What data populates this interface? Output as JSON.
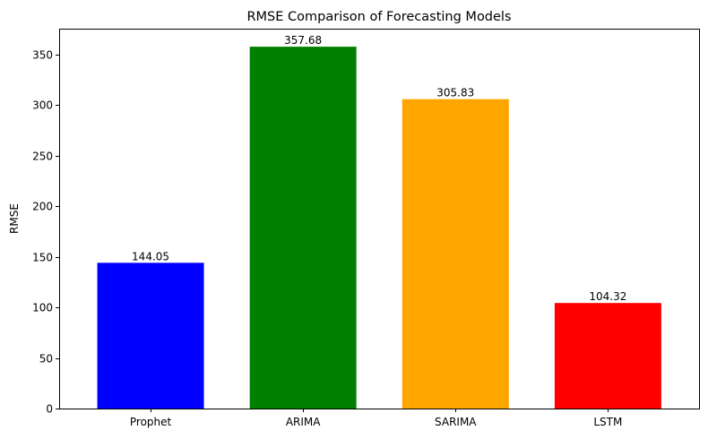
{
  "chart_data": {
    "type": "bar",
    "title": "RMSE Comparison of Forecasting Models",
    "xlabel": "",
    "ylabel": "RMSE",
    "categories": [
      "Prophet",
      "ARIMA",
      "SARIMA",
      "LSTM"
    ],
    "values": [
      144.05,
      357.68,
      305.83,
      104.32
    ],
    "value_labels": [
      "144.05",
      "357.68",
      "305.83",
      "104.32"
    ],
    "colors": [
      "#0000ff",
      "#008000",
      "#ffa500",
      "#ff0000"
    ],
    "ylim": [
      0,
      375.5
    ],
    "yticks": [
      0,
      50,
      100,
      150,
      200,
      250,
      300,
      350
    ],
    "grid": false,
    "legend": "none"
  }
}
